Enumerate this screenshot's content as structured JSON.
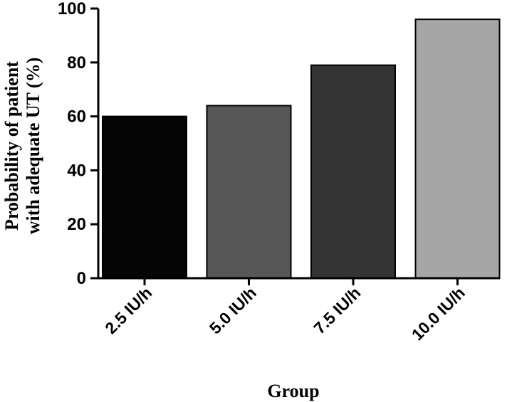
{
  "chart_data": {
    "type": "bar",
    "categories": [
      "2.5 IU/h",
      "5.0 IU/h",
      "7.5 IU/h",
      "10.0 IU/h"
    ],
    "values": [
      60,
      64,
      79,
      96
    ],
    "bar_colors": [
      "#050505",
      "#575757",
      "#343434",
      "#a6a6a6"
    ],
    "title": "",
    "xlabel": "Group",
    "ylabel_lines": [
      "Probability of patient",
      "with adequate UT (%)"
    ],
    "ylim": [
      0,
      100
    ],
    "yticks": [
      0,
      20,
      40,
      60,
      80,
      100
    ],
    "grid": false,
    "legend": "none"
  }
}
